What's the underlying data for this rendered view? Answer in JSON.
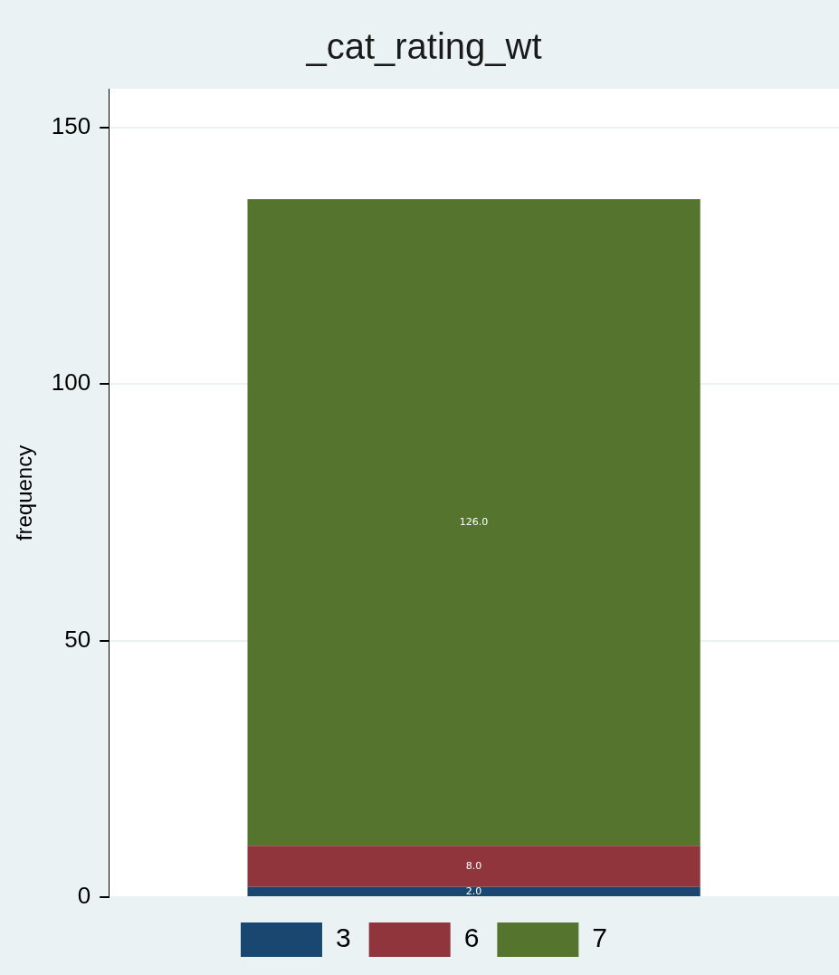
{
  "chart_data": {
    "type": "bar",
    "title": "_cat_rating_wt",
    "ylabel": "frequency",
    "categories": [
      null
    ],
    "stacked": true,
    "series": [
      {
        "name": "3",
        "color": "#1a476f",
        "values": [
          2
        ],
        "value_labels": [
          "2.0"
        ]
      },
      {
        "name": "6",
        "color": "#90353b",
        "values": [
          8
        ],
        "value_labels": [
          "8.0"
        ]
      },
      {
        "name": "7",
        "color": "#55752f",
        "values": [
          126
        ],
        "value_labels": [
          "126.0"
        ]
      }
    ],
    "ylim": [
      0,
      157.5
    ],
    "yticks": [
      0,
      50,
      100,
      150
    ],
    "grid": "y",
    "legend": "bottom",
    "tick_labels": "y"
  }
}
